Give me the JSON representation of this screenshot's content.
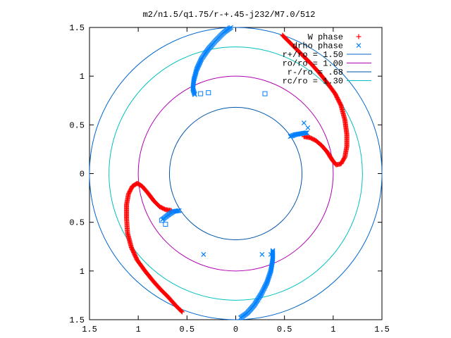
{
  "chart_data": {
    "type": "scatter",
    "title": "m2/n1.5/q1.75/r-+.45-j232/M7.0/512",
    "xlim": [
      -1.5,
      1.5
    ],
    "ylim": [
      -1.5,
      1.5
    ],
    "x_ticks": [
      -1.5,
      -1,
      -0.5,
      0,
      0.5,
      1,
      1.5
    ],
    "y_ticks": [
      -1.5,
      -1,
      -0.5,
      0,
      0.5,
      1,
      1.5
    ],
    "x_tick_labels": [
      "1.5",
      "1",
      "0.5",
      "0",
      "0.5",
      "1",
      "1.5"
    ],
    "y_tick_labels": [
      "1.5",
      "1",
      "0.5",
      "0",
      "0.5",
      "1",
      "1.5"
    ],
    "grid": false,
    "legend_position": "top-right",
    "series": [
      {
        "name": "W phase",
        "marker": "plus",
        "color": "#ff0000",
        "arms": [
          [
            [
              0.48,
              1.42
            ],
            [
              0.55,
              1.35
            ],
            [
              0.62,
              1.28
            ],
            [
              0.7,
              1.2
            ],
            [
              0.78,
              1.12
            ],
            [
              0.86,
              1.03
            ],
            [
              0.94,
              0.93
            ],
            [
              1.02,
              0.82
            ],
            [
              1.08,
              0.7
            ],
            [
              1.12,
              0.55
            ],
            [
              1.14,
              0.4
            ],
            [
              1.14,
              0.28
            ],
            [
              1.12,
              0.17
            ],
            [
              1.08,
              0.1
            ],
            [
              1.03,
              0.09
            ],
            [
              0.99,
              0.14
            ],
            [
              0.94,
              0.22
            ],
            [
              0.88,
              0.29
            ],
            [
              0.82,
              0.34
            ],
            [
              0.76,
              0.37
            ],
            [
              0.7,
              0.38
            ]
          ],
          [
            [
              -0.55,
              -1.42
            ],
            [
              -0.62,
              -1.35
            ],
            [
              -0.69,
              -1.27
            ],
            [
              -0.77,
              -1.19
            ],
            [
              -0.85,
              -1.1
            ],
            [
              -0.93,
              -1.0
            ],
            [
              -1.01,
              -0.89
            ],
            [
              -1.07,
              -0.76
            ],
            [
              -1.11,
              -0.61
            ],
            [
              -1.12,
              -0.46
            ],
            [
              -1.12,
              -0.32
            ],
            [
              -1.1,
              -0.21
            ],
            [
              -1.06,
              -0.13
            ],
            [
              -1.01,
              -0.1
            ],
            [
              -0.96,
              -0.13
            ],
            [
              -0.9,
              -0.2
            ],
            [
              -0.84,
              -0.28
            ],
            [
              -0.78,
              -0.34
            ],
            [
              -0.72,
              -0.37
            ],
            [
              -0.66,
              -0.38
            ]
          ]
        ]
      },
      {
        "name": "drho phase",
        "marker": "cross",
        "color": "#0080ff",
        "arms": [
          [
            [
              -0.05,
              1.5
            ],
            [
              -0.12,
              1.45
            ],
            [
              -0.2,
              1.37
            ],
            [
              -0.28,
              1.28
            ],
            [
              -0.35,
              1.18
            ],
            [
              -0.4,
              1.07
            ],
            [
              -0.43,
              0.96
            ],
            [
              -0.44,
              0.87
            ],
            [
              -0.42,
              0.81
            ]
          ],
          [
            [
              0.73,
              0.42
            ],
            [
              0.67,
              0.41
            ],
            [
              0.61,
              0.4
            ],
            [
              0.56,
              0.38
            ]
          ],
          [
            [
              -0.58,
              -0.38
            ],
            [
              -0.64,
              -0.39
            ],
            [
              -0.7,
              -0.43
            ],
            [
              -0.75,
              -0.47
            ]
          ],
          [
            [
              0.38,
              -0.79
            ],
            [
              0.38,
              -0.88
            ],
            [
              0.36,
              -1.0
            ],
            [
              0.32,
              -1.12
            ],
            [
              0.26,
              -1.24
            ],
            [
              0.19,
              -1.35
            ],
            [
              0.12,
              -1.43
            ],
            [
              0.05,
              -1.48
            ]
          ]
        ],
        "scatter_points": [
          [
            0.7,
            0.52
          ],
          [
            0.74,
            0.47
          ],
          [
            0.27,
            -0.83
          ],
          [
            0.36,
            -0.83
          ],
          [
            -0.33,
            -0.83
          ]
        ],
        "squares": [
          [
            -0.28,
            0.83
          ],
          [
            -0.36,
            0.82
          ],
          [
            0.3,
            0.82
          ],
          [
            -0.72,
            -0.52
          ],
          [
            -0.76,
            -0.48
          ]
        ]
      }
    ],
    "circles": [
      {
        "name": "r+/ro = 1.50",
        "radius": 1.5,
        "color": "#0066cc"
      },
      {
        "name": "ro/ro = 1.00",
        "radius": 1.0,
        "color": "#b000b0"
      },
      {
        "name": "r-/ro = .68",
        "radius": 0.68,
        "color": "#0055aa"
      },
      {
        "name": "rc/ro = 1.30",
        "radius": 1.3,
        "color": "#00c0c0"
      }
    ]
  }
}
